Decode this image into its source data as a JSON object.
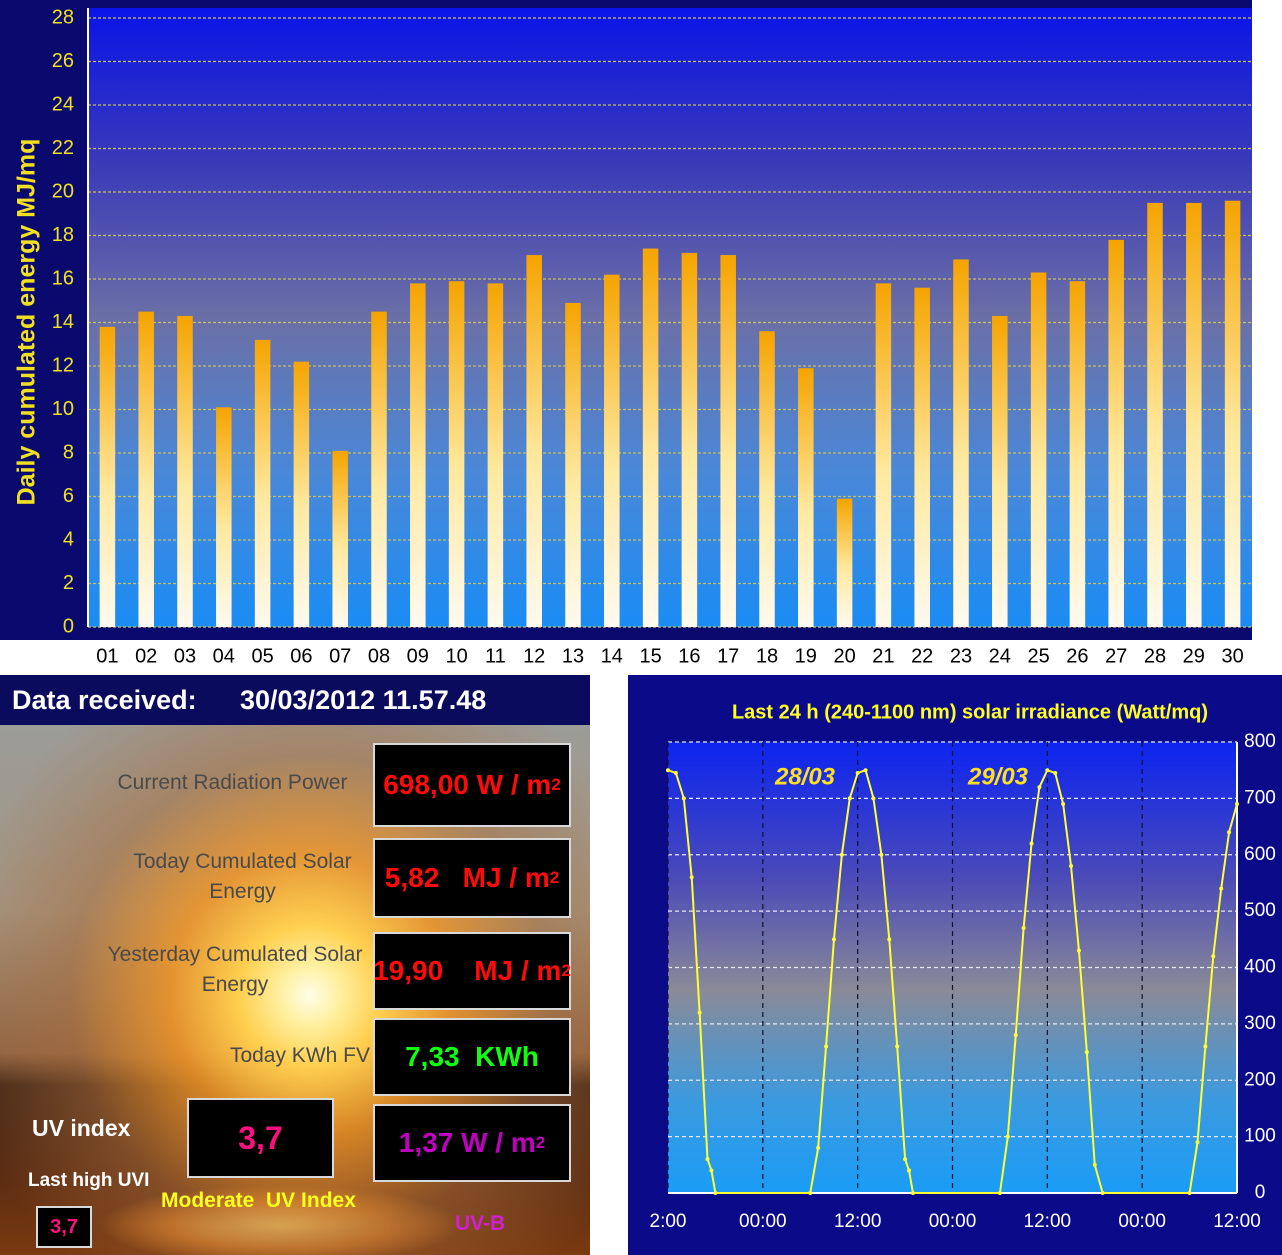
{
  "header": {
    "label": "Data received:",
    "timestamp": "30/03/2012 11.57.48"
  },
  "readings": [
    {
      "label": "Current Radiation Power",
      "value": "698,00 W / m",
      "superscript": "2"
    },
    {
      "label": "Today Cumulated Solar Energy",
      "value": "5,82   MJ / m",
      "superscript": "2"
    },
    {
      "label": "Yesterday Cumulated Solar Energy",
      "value": "19,90    MJ / m",
      "superscript": "2"
    },
    {
      "label": "Today KWh FV",
      "value": "7,33  KWh"
    }
  ],
  "uv": {
    "label": "UV index",
    "value": "3,7",
    "rating": "Moderate  UV Index",
    "last_high_label": "Last high UVI",
    "last_high_value": "3,7",
    "uvb_value": "1,37 W / m",
    "uvb_superscript": "2",
    "uvb_label": "UV-B"
  },
  "chart_data": [
    {
      "type": "bar",
      "y_label": "Daily cumulated  energy  MJ/mq",
      "categories": [
        "01",
        "02",
        "03",
        "04",
        "05",
        "06",
        "07",
        "08",
        "09",
        "10",
        "11",
        "12",
        "13",
        "14",
        "15",
        "16",
        "17",
        "18",
        "19",
        "20",
        "21",
        "22",
        "23",
        "24",
        "25",
        "26",
        "27",
        "28",
        "29",
        "30"
      ],
      "values": [
        13.8,
        14.5,
        14.3,
        10.1,
        13.2,
        12.2,
        8.1,
        14.5,
        15.8,
        15.9,
        15.8,
        17.1,
        14.9,
        16.2,
        17.4,
        17.2,
        17.1,
        13.6,
        11.9,
        5.9,
        15.8,
        15.6,
        16.9,
        14.3,
        16.3,
        15.9,
        17.8,
        19.5,
        19.5,
        19.6
      ],
      "color": "#f5a400",
      "ylim": [
        0,
        28
      ],
      "yticks": [
        0,
        2,
        4,
        6,
        8,
        10,
        12,
        14,
        16,
        18,
        20,
        22,
        24,
        26,
        28
      ],
      "grid": true
    },
    {
      "type": "line",
      "title": "Last 24 h   (240-1100 nm) solar irradiance (Watt/mq)",
      "annotations": [
        "28/03",
        "29/03"
      ],
      "x": [
        0,
        1,
        2,
        3,
        4,
        5,
        5.5,
        6,
        18,
        19,
        20,
        21,
        22,
        23,
        24,
        25,
        26,
        27,
        28,
        29,
        30,
        30.5,
        31,
        42,
        43,
        44,
        45,
        46,
        47,
        48,
        49,
        50,
        51,
        52,
        53,
        54,
        55,
        66,
        67,
        68,
        69,
        70,
        71,
        72
      ],
      "series": [
        {
          "color": "#ffff33",
          "axis": "y2",
          "values": [
            750,
            745,
            700,
            560,
            320,
            60,
            40,
            0,
            0,
            80,
            260,
            450,
            600,
            700,
            745,
            750,
            700,
            600,
            450,
            260,
            60,
            40,
            0,
            0,
            100,
            280,
            470,
            620,
            720,
            750,
            745,
            690,
            580,
            430,
            250,
            50,
            0,
            0,
            90,
            260,
            420,
            540,
            640,
            690
          ]
        }
      ],
      "xlim": [
        0,
        72
      ],
      "xticks": [
        {
          "value": 0,
          "label": "2:00"
        },
        {
          "value": 12,
          "label": "00:00"
        },
        {
          "value": 24,
          "label": "12:00"
        },
        {
          "value": 36,
          "label": "00:00"
        },
        {
          "value": 48,
          "label": "12:00"
        },
        {
          "value": 60,
          "label": "00:00"
        },
        {
          "value": 72,
          "label": "12:00"
        }
      ],
      "y2lim": [
        0,
        800
      ],
      "y2ticks": [
        0,
        100,
        200,
        300,
        400,
        500,
        600,
        700,
        800
      ],
      "grid": true
    }
  ]
}
